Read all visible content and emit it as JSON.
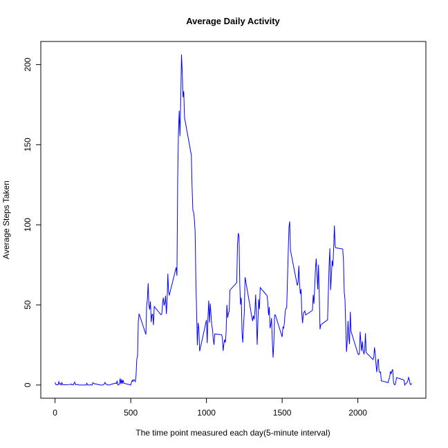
{
  "chart_data": {
    "type": "line",
    "title": "Average Daily Activity",
    "x_label": "The time point measured each day(5-minute interval)",
    "y_label": "Average Steps Taken",
    "x": [
      0,
      5,
      10,
      15,
      20,
      25,
      30,
      35,
      40,
      45,
      50,
      55,
      100,
      105,
      110,
      115,
      120,
      125,
      130,
      135,
      140,
      145,
      150,
      155,
      200,
      205,
      210,
      215,
      220,
      225,
      230,
      235,
      240,
      245,
      250,
      255,
      300,
      305,
      310,
      315,
      320,
      325,
      330,
      335,
      340,
      345,
      350,
      355,
      400,
      405,
      410,
      415,
      420,
      425,
      430,
      435,
      440,
      445,
      450,
      455,
      500,
      505,
      510,
      515,
      520,
      525,
      530,
      535,
      540,
      545,
      550,
      555,
      600,
      605,
      610,
      615,
      620,
      625,
      630,
      635,
      640,
      645,
      650,
      655,
      700,
      705,
      710,
      715,
      720,
      725,
      730,
      735,
      740,
      745,
      750,
      755,
      800,
      805,
      810,
      815,
      820,
      825,
      830,
      835,
      840,
      845,
      850,
      855,
      900,
      905,
      910,
      915,
      920,
      925,
      930,
      935,
      940,
      945,
      950,
      955,
      1000,
      1005,
      1010,
      1015,
      1020,
      1025,
      1030,
      1035,
      1040,
      1045,
      1050,
      1055,
      1100,
      1105,
      1110,
      1115,
      1120,
      1125,
      1130,
      1135,
      1140,
      1145,
      1150,
      1155,
      1200,
      1205,
      1210,
      1215,
      1220,
      1225,
      1230,
      1235,
      1240,
      1245,
      1250,
      1255,
      1300,
      1305,
      1310,
      1315,
      1320,
      1325,
      1330,
      1335,
      1340,
      1345,
      1350,
      1355,
      1400,
      1405,
      1410,
      1415,
      1420,
      1425,
      1430,
      1435,
      1440,
      1445,
      1450,
      1455,
      1500,
      1505,
      1510,
      1515,
      1520,
      1525,
      1530,
      1535,
      1540,
      1545,
      1550,
      1555,
      1600,
      1605,
      1610,
      1615,
      1620,
      1625,
      1630,
      1635,
      1640,
      1645,
      1650,
      1655,
      1700,
      1705,
      1710,
      1715,
      1720,
      1725,
      1730,
      1735,
      1740,
      1745,
      1750,
      1755,
      1800,
      1805,
      1810,
      1815,
      1820,
      1825,
      1830,
      1835,
      1840,
      1845,
      1850,
      1855,
      1900,
      1905,
      1910,
      1915,
      1920,
      1925,
      1930,
      1935,
      1940,
      1945,
      1950,
      1955,
      2000,
      2005,
      2010,
      2015,
      2020,
      2025,
      2030,
      2035,
      2040,
      2045,
      2050,
      2055,
      2100,
      2105,
      2110,
      2115,
      2120,
      2125,
      2130,
      2135,
      2140,
      2145,
      2150,
      2155,
      2200,
      2205,
      2210,
      2215,
      2220,
      2225,
      2230,
      2235,
      2240,
      2245,
      2250,
      2255,
      2300,
      2305,
      2310,
      2315,
      2320,
      2325,
      2330,
      2335,
      2340,
      2345,
      2350,
      2355
    ],
    "series": [
      {
        "color": "#0000ff",
        "values": [
          1.7,
          0.3,
          0.1,
          0.2,
          0.1,
          2.1,
          0.5,
          0.9,
          0,
          1.5,
          0.3,
          0.1,
          0.3,
          0.7,
          0.2,
          0.3,
          0,
          1.1,
          1.8,
          0.2,
          0.2,
          0.4,
          0.3,
          0,
          0,
          0,
          1.1,
          0,
          0,
          0.1,
          0,
          0.2,
          0,
          0,
          1.5,
          0.9,
          0,
          0,
          0,
          0,
          0.2,
          0.6,
          1.6,
          0.6,
          0.5,
          0.1,
          0,
          0,
          1.2,
          0.9,
          2.6,
          0,
          0.3,
          0.4,
          4.1,
          0.7,
          3.5,
          0.8,
          3.1,
          1.1,
          0,
          1.6,
          3.0,
          2.2,
          3.3,
          3.0,
          2.1,
          6.1,
          16.0,
          18.3,
          39.5,
          44.5,
          31.5,
          49.3,
          53.8,
          63.5,
          50.0,
          47.1,
          52.2,
          39.3,
          44.0,
          44.2,
          37.4,
          49.0,
          43.8,
          44.4,
          50.5,
          54.5,
          49.9,
          50.9,
          55.7,
          44.3,
          52.3,
          69.5,
          57.8,
          56.2,
          73.4,
          68.2,
          129.4,
          157.5,
          171.2,
          155.4,
          177.3,
          206.2,
          195.9,
          179.6,
          183.4,
          167.0,
          143.5,
          124.0,
          109.1,
          108.1,
          103.7,
          96.0,
          66.2,
          45.2,
          24.8,
          38.8,
          35.0,
          21.1,
          40.6,
          26.1,
          42.4,
          52.7,
          38.9,
          50.8,
          44.3,
          37.4,
          34.7,
          28.3,
          25.1,
          31.9,
          31.4,
          29.7,
          21.3,
          25.5,
          28.4,
          26.5,
          33.4,
          50.0,
          42.0,
          44.6,
          46.0,
          59.2,
          63.9,
          87.7,
          94.8,
          92.8,
          63.4,
          50.2,
          54.5,
          32.4,
          26.5,
          37.7,
          45.1,
          67.3,
          42.3,
          39.9,
          43.3,
          41.0,
          46.2,
          56.4,
          42.8,
          25.1,
          40.0,
          53.5,
          47.3,
          60.8,
          55.8,
          52.0,
          43.6,
          48.7,
          35.5,
          37.5,
          41.8,
          27.5,
          17.1,
          26.1,
          43.6,
          43.8,
          30.0,
          36.1,
          35.5,
          38.8,
          46.0,
          47.8,
          48.1,
          65.3,
          82.9,
          98.7,
          102.1,
          84.0,
          62.1,
          64.1,
          74.5,
          63.2,
          56.9,
          59.8,
          43.9,
          38.6,
          44.7,
          45.5,
          46.2,
          43.7,
          46.6,
          56.3,
          50.7,
          61.2,
          72.7,
          78.9,
          68.9,
          59.7,
          75.1,
          56.5,
          34.8,
          37.5,
          40.7,
          58.0,
          74.7,
          85.3,
          59.3,
          67.8,
          77.7,
          74.2,
          85.3,
          99.5,
          86.6,
          85.6,
          84.9,
          77.8,
          58.0,
          53.4,
          36.3,
          20.7,
          27.4,
          40.0,
          30.2,
          25.5,
          45.7,
          33.5,
          19.6,
          19.0,
          19.3,
          33.3,
          26.8,
          21.2,
          27.3,
          21.3,
          19.5,
          21.3,
          32.3,
          20.2,
          15.9,
          17.2,
          23.5,
          19.2,
          12.5,
          8.0,
          14.7,
          16.3,
          8.7,
          7.8,
          8.1,
          2.6,
          1.5,
          3.7,
          4.8,
          8.5,
          7.1,
          8.7,
          9.8,
          2.2,
          0.3,
          0.1,
          1.6,
          4.6,
          3.3,
          2.8,
          0,
          0.8,
          1.0,
          1.6,
          2.6,
          4.7,
          3.3,
          0.6,
          0.2,
          1.1
        ]
      }
    ],
    "xlim": [
      -94.2,
      2449.2
    ],
    "xticks": [
      0,
      500,
      1000,
      1500,
      2000
    ],
    "ylim": [
      -8.25,
      214.42
    ],
    "yticks": [
      0,
      50,
      100,
      150,
      200
    ]
  }
}
